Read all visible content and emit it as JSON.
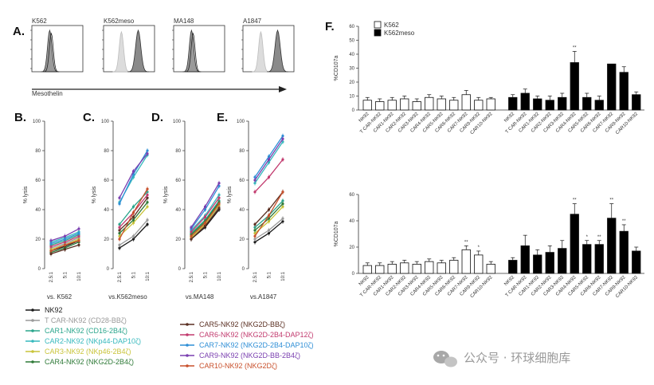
{
  "colors": {
    "ink": "#222222",
    "NK92": "#1a1a1a",
    "T_CAR": "#9a9a9a",
    "CAR1": "#2aa58c",
    "CAR2": "#37b9bd",
    "CAR3": "#c9c43a",
    "CAR4": "#2f7a38",
    "CAR5": "#5a2f22",
    "CAR6": "#c23a6e",
    "CAR7": "#2f8fd6",
    "CAR9": "#7a3fb0",
    "CAR10": "#c8502c"
  },
  "panel_a": {
    "letter": "A.",
    "xlabel": "Mesothelin",
    "samples": [
      {
        "name": "K562",
        "shift": false
      },
      {
        "name": "K562meso",
        "shift": true
      },
      {
        "name": "MA148",
        "shift": false
      },
      {
        "name": "A1847",
        "shift": true
      }
    ]
  },
  "chart_data": [
    {
      "type": "line",
      "panel": "B.",
      "title": "vs. K562",
      "ylabel": "% lysis",
      "x": [
        "2.5:1",
        "5:1",
        "10:1"
      ],
      "ylim": [
        0,
        100
      ],
      "yticks": [
        0,
        20,
        40,
        60,
        80,
        100
      ],
      "series": [
        {
          "name": "NK92",
          "key": "NK92",
          "values": [
            12,
            15,
            19
          ]
        },
        {
          "name": "T CAR-NK92",
          "key": "T_CAR",
          "values": [
            14,
            17,
            21
          ]
        },
        {
          "name": "CAR1-NK92",
          "key": "CAR1",
          "values": [
            16,
            19,
            23
          ]
        },
        {
          "name": "CAR2-NK92",
          "key": "CAR2",
          "values": [
            18,
            21,
            25
          ]
        },
        {
          "name": "CAR3-NK92",
          "key": "CAR3",
          "values": [
            13,
            16,
            20
          ]
        },
        {
          "name": "CAR4-NK92",
          "key": "CAR4",
          "values": [
            11,
            14,
            18
          ]
        },
        {
          "name": "CAR5-NK92",
          "key": "CAR5",
          "values": [
            10,
            13,
            16
          ]
        },
        {
          "name": "CAR6-NK92",
          "key": "CAR6",
          "values": [
            15,
            18,
            22
          ]
        },
        {
          "name": "CAR7-NK92",
          "key": "CAR7",
          "values": [
            17,
            20,
            24
          ]
        },
        {
          "name": "CAR9-NK92",
          "key": "CAR9",
          "values": [
            19,
            22,
            27
          ]
        },
        {
          "name": "CAR10-NK92",
          "key": "CAR10",
          "values": [
            12,
            16,
            19
          ]
        }
      ]
    },
    {
      "type": "line",
      "panel": "C.",
      "title": "vs.K562meso",
      "ylabel": "% lysis",
      "x": [
        "2.5:1",
        "5:1",
        "10:1"
      ],
      "ylim": [
        0,
        100
      ],
      "yticks": [
        0,
        20,
        40,
        60,
        80,
        100
      ],
      "series": [
        {
          "name": "NK92",
          "key": "NK92",
          "values": [
            14,
            20,
            30
          ]
        },
        {
          "name": "T CAR-NK92",
          "key": "T_CAR",
          "values": [
            16,
            22,
            33
          ]
        },
        {
          "name": "CAR1-NK92",
          "key": "CAR1",
          "values": [
            30,
            42,
            52
          ]
        },
        {
          "name": "CAR2-NK92",
          "key": "CAR2",
          "values": [
            45,
            62,
            77
          ]
        },
        {
          "name": "CAR3-NK92",
          "key": "CAR3",
          "values": [
            22,
            31,
            42
          ]
        },
        {
          "name": "CAR4-NK92",
          "key": "CAR4",
          "values": [
            24,
            33,
            45
          ]
        },
        {
          "name": "CAR5-NK92",
          "key": "CAR5",
          "values": [
            26,
            35,
            48
          ]
        },
        {
          "name": "CAR6-NK92",
          "key": "CAR6",
          "values": [
            28,
            38,
            50
          ]
        },
        {
          "name": "CAR7-NK92",
          "key": "CAR7",
          "values": [
            44,
            64,
            80
          ]
        },
        {
          "name": "CAR9-NK92",
          "key": "CAR9",
          "values": [
            48,
            66,
            78
          ]
        },
        {
          "name": "CAR10-NK92",
          "key": "CAR10",
          "values": [
            20,
            38,
            54
          ]
        }
      ]
    },
    {
      "type": "line",
      "panel": "D.",
      "title": "vs.MA148",
      "ylabel": "% lysis",
      "x": [
        "2.5:1",
        "5:1",
        "10:1"
      ],
      "ylim": [
        0,
        100
      ],
      "yticks": [
        0,
        20,
        40,
        60,
        80,
        100
      ],
      "series": [
        {
          "name": "NK92",
          "key": "NK92",
          "values": [
            20,
            28,
            40
          ]
        },
        {
          "name": "T CAR-NK92",
          "key": "T_CAR",
          "values": [
            22,
            30,
            42
          ]
        },
        {
          "name": "CAR1-NK92",
          "key": "CAR1",
          "values": [
            24,
            33,
            46
          ]
        },
        {
          "name": "CAR2-NK92",
          "key": "CAR2",
          "values": [
            26,
            36,
            50
          ]
        },
        {
          "name": "CAR3-NK92",
          "key": "CAR3",
          "values": [
            21,
            30,
            43
          ]
        },
        {
          "name": "CAR4-NK92",
          "key": "CAR4",
          "values": [
            23,
            32,
            45
          ]
        },
        {
          "name": "CAR5-NK92",
          "key": "CAR5",
          "values": [
            20,
            29,
            41
          ]
        },
        {
          "name": "CAR6-NK92",
          "key": "CAR6",
          "values": [
            25,
            35,
            48
          ]
        },
        {
          "name": "CAR7-NK92",
          "key": "CAR7",
          "values": [
            27,
            40,
            56
          ]
        },
        {
          "name": "CAR9-NK92",
          "key": "CAR9",
          "values": [
            28,
            42,
            58
          ]
        },
        {
          "name": "CAR10-NK92",
          "key": "CAR10",
          "values": [
            22,
            31,
            44
          ]
        }
      ]
    },
    {
      "type": "line",
      "panel": "E.",
      "title": "vs.A1847",
      "ylabel": "% lysis",
      "x": [
        "2.5:1",
        "5:1",
        "10:1"
      ],
      "ylim": [
        0,
        100
      ],
      "yticks": [
        0,
        20,
        40,
        60,
        80,
        100
      ],
      "series": [
        {
          "name": "NK92",
          "key": "NK92",
          "values": [
            18,
            24,
            32
          ]
        },
        {
          "name": "T CAR-NK92",
          "key": "T_CAR",
          "values": [
            20,
            26,
            34
          ]
        },
        {
          "name": "CAR1-NK92",
          "key": "CAR1",
          "values": [
            28,
            36,
            46
          ]
        },
        {
          "name": "CAR2-NK92",
          "key": "CAR2",
          "values": [
            58,
            72,
            86
          ]
        },
        {
          "name": "CAR3-NK92",
          "key": "CAR3",
          "values": [
            24,
            32,
            42
          ]
        },
        {
          "name": "CAR4-NK92",
          "key": "CAR4",
          "values": [
            26,
            34,
            44
          ]
        },
        {
          "name": "CAR5-NK92",
          "key": "CAR5",
          "values": [
            30,
            40,
            52
          ]
        },
        {
          "name": "CAR6-NK92",
          "key": "CAR6",
          "values": [
            52,
            62,
            74
          ]
        },
        {
          "name": "CAR7-NK92",
          "key": "CAR7",
          "values": [
            62,
            76,
            90
          ]
        },
        {
          "name": "CAR9-NK92",
          "key": "CAR9",
          "values": [
            60,
            74,
            88
          ]
        },
        {
          "name": "CAR10-NK92",
          "key": "CAR10",
          "values": [
            22,
            36,
            52
          ]
        }
      ]
    },
    {
      "type": "bar",
      "panel": "F.",
      "ylabel": "%CD107a",
      "ylim": [
        0,
        60
      ],
      "yticks": [
        0,
        10,
        20,
        30,
        40,
        50,
        60
      ],
      "legend": [
        {
          "label": "K562",
          "fill": "#ffffff"
        },
        {
          "label": "K562meso",
          "fill": "#000000"
        }
      ],
      "groups": [
        {
          "name": "K562",
          "fill": "#ffffff",
          "categories": [
            "NK92",
            "T CAR-NK92",
            "CAR1-NK92",
            "CAR2-NK92",
            "CAR3-NK92",
            "CAR4-NK92",
            "CAR5-NK92",
            "CAR6-NK92",
            "CAR7-NK92",
            "CAR9-NK92",
            "CAR10-NK92"
          ],
          "values": [
            7,
            6,
            7,
            8,
            6,
            9,
            8,
            7,
            11,
            7,
            8
          ],
          "errors": [
            2,
            2,
            2,
            2,
            2,
            2,
            2,
            2,
            3,
            2,
            1
          ],
          "stars": [
            "",
            "",
            "",
            "",
            "",
            "",
            "",
            "",
            "",
            "",
            ""
          ]
        },
        {
          "name": "K562meso",
          "fill": "#000000",
          "categories": [
            "NK92",
            "T CAR-NK92",
            "CAR1-NK92",
            "CAR2-NK92",
            "CAR3-NK92",
            "CAR4-NK92",
            "CAR5-NK92",
            "CAR6-NK92",
            "CAR7-NK92",
            "CAR9-NK92",
            "CAR10-NK92"
          ],
          "values": [
            9,
            12,
            8,
            7,
            9,
            34,
            9,
            7,
            33,
            27,
            11
          ],
          "errors": [
            2,
            3,
            2,
            3,
            3,
            8,
            3,
            3,
            0,
            4,
            2
          ],
          "stars": [
            "",
            "",
            "",
            "",
            "",
            "**",
            "",
            "",
            "",
            "",
            ""
          ]
        }
      ]
    },
    {
      "type": "bar",
      "panel": "",
      "ylabel": "%CD107a",
      "ylim": [
        0,
        60
      ],
      "yticks": [
        0,
        20,
        40,
        60
      ],
      "groups": [
        {
          "name": "A1847-left",
          "fill": "#ffffff",
          "categories": [
            "NK92",
            "T CAR-NK92",
            "CAR1-NK92",
            "CAR2-NK92",
            "CAR3-NK92",
            "CAR4-NK92",
            "CAR5-NK92",
            "CAR6-NK92",
            "CAR7-NK92",
            "CAR9-NK92",
            "CAR10-NK92"
          ],
          "values": [
            6,
            6,
            7,
            8,
            7,
            9,
            8,
            10,
            18,
            14,
            7
          ],
          "errors": [
            2,
            2,
            2,
            2,
            2,
            2,
            2,
            2,
            3,
            3,
            2
          ],
          "stars": [
            "",
            "",
            "",
            "",
            "",
            "",
            "",
            "",
            "**",
            "*",
            ""
          ]
        },
        {
          "name": "A1847-right",
          "fill": "#000000",
          "categories": [
            "NK92",
            "T CAR-NK92",
            "CAR1-NK92",
            "CAR2-NK92",
            "CAR3-NK92",
            "CAR4-NK92",
            "CAR5-NK92",
            "CAR6-NK92",
            "CAR7-NK92",
            "CAR9-NK92",
            "CAR10-NK92"
          ],
          "values": [
            10,
            21,
            14,
            16,
            19,
            45,
            22,
            22,
            42,
            32,
            17
          ],
          "errors": [
            2,
            8,
            4,
            5,
            6,
            8,
            3,
            3,
            11,
            5,
            3
          ],
          "stars": [
            "",
            "",
            "",
            "",
            "",
            "**",
            "*",
            "**",
            "**",
            "**",
            ""
          ]
        }
      ]
    }
  ],
  "legend": {
    "col1": [
      {
        "key": "NK92",
        "label": "NK92"
      },
      {
        "key": "T_CAR",
        "label": "T CAR-NK92 (CD28-BBζ)"
      },
      {
        "key": "CAR1",
        "label": "CAR1-NK92 (CD16-2B4ζ)"
      },
      {
        "key": "CAR2",
        "label": "CAR2-NK92 (NKp44-DAP10ζ)"
      },
      {
        "key": "CAR3",
        "label": "CAR3-NK92 (NKp46-2B4ζ)"
      },
      {
        "key": "CAR4",
        "label": "CAR4-NK92 (NKG2D-2B4ζ)"
      }
    ],
    "col2": [
      {
        "key": "CAR5",
        "label": "CAR5-NK92 (NKG2D-BBζ)"
      },
      {
        "key": "CAR6",
        "label": "CAR6-NK92 (NKG2D-2B4-DAP12ζ)"
      },
      {
        "key": "CAR7",
        "label": "CAR7-NK92 (NKG2D-2B4-DAP10ζ)"
      },
      {
        "key": "CAR9",
        "label": "CAR9-NK92 (NKG2D-BB-2B4ζ)"
      },
      {
        "key": "CAR10",
        "label": "CAR10-NK92 (NKG2Dζ)"
      }
    ]
  },
  "watermark": {
    "text": "公众号 · 环球细胞库",
    "icon": "wechat-icon"
  }
}
